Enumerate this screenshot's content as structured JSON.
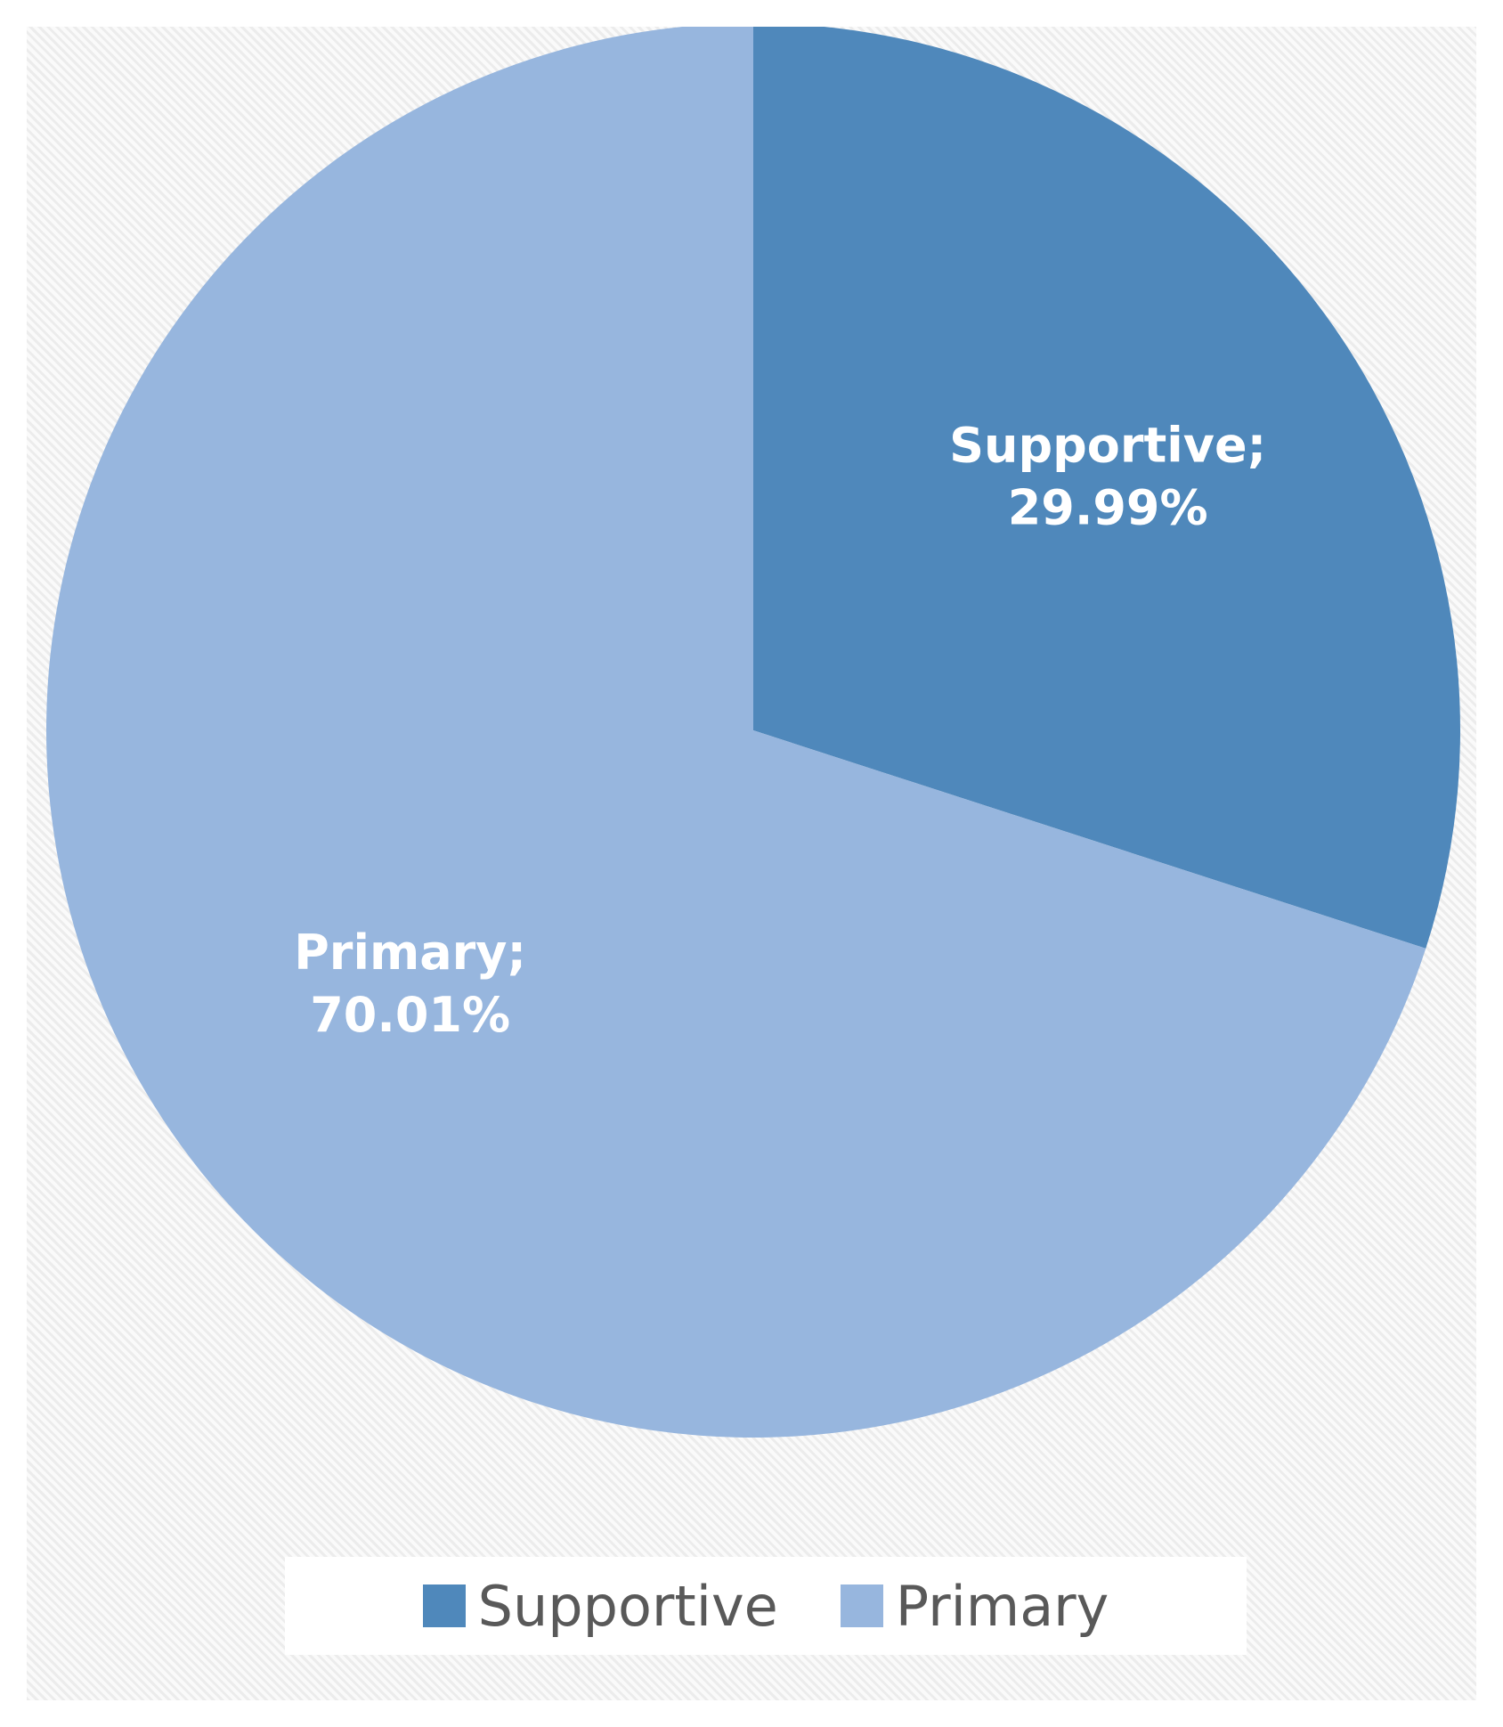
{
  "chart_data": {
    "type": "pie",
    "title": "",
    "start_angle_deg": 0,
    "direction": "clockwise",
    "series": [
      {
        "categories": [
          "Supportive",
          "Primary"
        ],
        "values": [
          29.99,
          70.01
        ],
        "data_labels": [
          {
            "category": "Supportive;",
            "value": "29.99%"
          },
          {
            "category": "Primary;",
            "value": "70.01%"
          }
        ],
        "colors": [
          "#4f88bb",
          "#97b6de"
        ]
      }
    ],
    "legend": {
      "position": "bottom",
      "entries": [
        "Supportive",
        "Primary"
      ]
    }
  }
}
